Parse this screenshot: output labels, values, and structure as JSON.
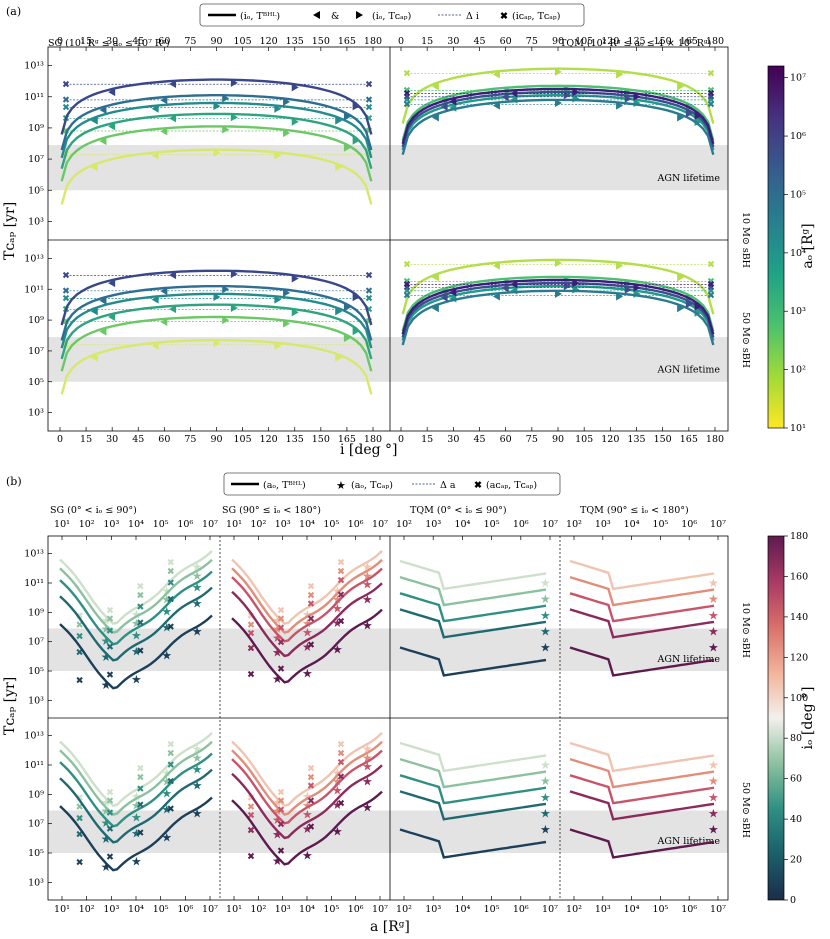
{
  "chart_data": [
    {
      "type": "line",
      "panel_label": "(a)",
      "legend": {
        "line_label": "(iₒ, Tᴮᴴᴸ)",
        "amp": "&",
        "tri_label": "(iₒ, Tᴄₐₚ)",
        "dash_label": "Δ i",
        "cross_label": "(iᴄₐₚ, Tᴄₐₚ)"
      },
      "xlabel": "i  [deg °]",
      "ylabel": "Tᴄₐₚ  [yr]",
      "xlim": [
        0,
        180
      ],
      "x_ticks": [
        "0",
        "15",
        "30",
        "45",
        "60",
        "75",
        "90",
        "105",
        "120",
        "135",
        "150",
        "165",
        "180"
      ],
      "y_ticks": [
        "10³",
        "10⁵",
        "10⁷",
        "10⁹",
        "10¹¹",
        "10¹³"
      ],
      "ylim_log10": [
        2,
        14
      ],
      "columns": [
        "SG  (10¹ Rᵍ ≤ aₒ ≤ 10⁷ Rᵍ)",
        "TQM  (10² Rᵍ ≤ aₒ ≤ 4 × 10⁷ Rᵍ)"
      ],
      "rows": [
        "10 M⊙ sBH",
        "50 M⊙ sBH"
      ],
      "agn_lifetime_label": "AGN lifetime",
      "agn_lifetime_range_log10": [
        5,
        7.9
      ],
      "colorbar": {
        "label": "aₒ  [Rᵍ]",
        "ticks": [
          "10¹",
          "10²",
          "10³",
          "10⁴",
          "10⁵",
          "10⁶",
          "10⁷"
        ],
        "colors": [
          "#fde725",
          "#a0da39",
          "#4ac16d",
          "#1fa187",
          "#277f8e",
          "#365c8d",
          "#46327e",
          "#440154"
        ]
      },
      "series": [
        {
          "panel": "SG",
          "a_log10": 1.5,
          "peak_log10": 7.6,
          "color": "#d8e86a"
        },
        {
          "panel": "SG",
          "a_log10": 2.5,
          "peak_log10": 9.1,
          "color": "#6cc866"
        },
        {
          "panel": "SG",
          "a_log10": 3.5,
          "peak_log10": 9.9,
          "color": "#2ea37f"
        },
        {
          "panel": "SG",
          "a_log10": 4.5,
          "peak_log10": 10.6,
          "color": "#238b8c"
        },
        {
          "panel": "SG",
          "a_log10": 5.5,
          "peak_log10": 11.1,
          "color": "#2d6e91"
        },
        {
          "panel": "SG",
          "a_log10": 6.5,
          "peak_log10": 12.1,
          "color": "#39478a"
        },
        {
          "panel": "TQM",
          "a_log10": 2.0,
          "peak_log10": 12.8,
          "color": "#b3de4a"
        },
        {
          "panel": "TQM",
          "a_log10": 3.0,
          "peak_log10": 11.7,
          "color": "#4cbf70"
        },
        {
          "panel": "TQM",
          "a_log10": 4.5,
          "peak_log10": 11.1,
          "color": "#209b8a"
        },
        {
          "panel": "TQM",
          "a_log10": 5.5,
          "peak_log10": 10.8,
          "color": "#2a7b8f"
        },
        {
          "panel": "TQM",
          "a_log10": 6.5,
          "peak_log10": 11.3,
          "color": "#3b4f8c"
        },
        {
          "panel": "TQM",
          "a_log10": 7.3,
          "peak_log10": 11.5,
          "color": "#3a1f7a"
        }
      ]
    },
    {
      "type": "line",
      "panel_label": "(b)",
      "legend": {
        "line_label": "(aₒ, Tᴮᴴᴸ)",
        "star_label": "(aₒ, Tᴄₐₚ)",
        "dash_label": "Δ a",
        "cross_label": "(aᴄₐₚ, Tᴄₐₚ)"
      },
      "xlabel": "a  [Rᵍ]",
      "ylabel": "Tᴄₐₚ  [yr]",
      "x_ticks_sg": [
        "10¹",
        "10²",
        "10³",
        "10⁴",
        "10⁵",
        "10⁶",
        "10⁷"
      ],
      "x_ticks_tqm": [
        "10²",
        "10³",
        "10⁴",
        "10⁵",
        "10⁶",
        "10⁷"
      ],
      "y_ticks": [
        "10³",
        "10⁵",
        "10⁷",
        "10⁹",
        "10¹¹",
        "10¹³"
      ],
      "ylim_log10": [
        2,
        14
      ],
      "columns": [
        "SG  (0° < iₒ ≤ 90°)",
        "SG  (90° ≤ iₒ < 180°)",
        "TQM  (0° < iₒ ≤ 90°)",
        "TQM  (90° ≤ iₒ < 180°)"
      ],
      "rows": [
        "10 M⊙ sBH",
        "50 M⊙ sBH"
      ],
      "agn_lifetime_label": "AGN lifetime",
      "agn_lifetime_range_log10": [
        5,
        7.9
      ],
      "colorbar": {
        "label": "iₒ  [deg °]",
        "ticks": [
          "0",
          "20",
          "40",
          "60",
          "80",
          "100",
          "120",
          "140",
          "160",
          "180"
        ],
        "colors": [
          "#1c2d4a",
          "#1a5f6a",
          "#2f8f83",
          "#8cc1a0",
          "#f3f0ec",
          "#f2b49a",
          "#d8706a",
          "#a83a64",
          "#5e1a4f"
        ]
      },
      "series": [
        {
          "panel": "SG-low",
          "inclination_deg": 80,
          "offset_log10": 5.0,
          "color": "#cde0c9"
        },
        {
          "panel": "SG-low",
          "inclination_deg": 60,
          "offset_log10": 4.4,
          "color": "#8cc1a0"
        },
        {
          "panel": "SG-low",
          "inclination_deg": 40,
          "offset_log10": 3.6,
          "color": "#2f8f83"
        },
        {
          "panel": "SG-low",
          "inclination_deg": 25,
          "offset_log10": 2.5,
          "color": "#1f6a72"
        },
        {
          "panel": "SG-low",
          "inclination_deg": 10,
          "offset_log10": 0.6,
          "color": "#1c3f5a"
        },
        {
          "panel": "SG-high",
          "inclination_deg": 100,
          "offset_log10": 5.0,
          "color": "#f0c4b0"
        },
        {
          "panel": "SG-high",
          "inclination_deg": 120,
          "offset_log10": 4.4,
          "color": "#e38c78"
        },
        {
          "panel": "SG-high",
          "inclination_deg": 140,
          "offset_log10": 3.8,
          "color": "#c8546a"
        },
        {
          "panel": "SG-high",
          "inclination_deg": 160,
          "offset_log10": 2.8,
          "color": "#8c2a5c"
        },
        {
          "panel": "SG-high",
          "inclination_deg": 170,
          "offset_log10": 1.0,
          "color": "#5e1a4f"
        }
      ]
    }
  ]
}
